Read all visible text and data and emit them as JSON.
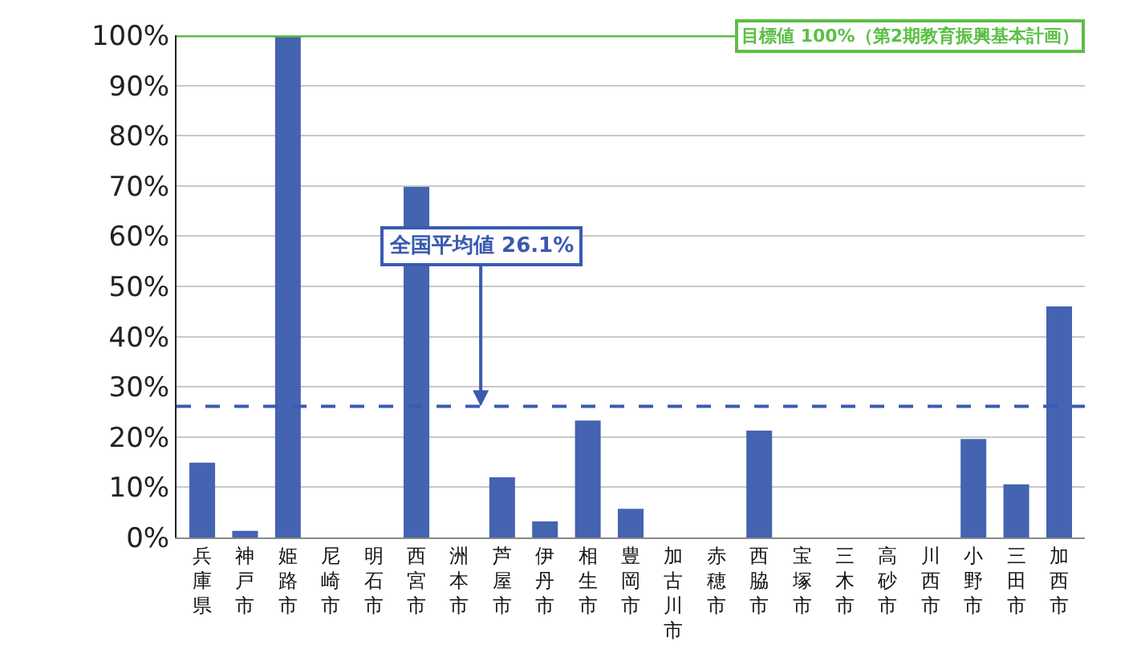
{
  "chart_data": {
    "type": "bar",
    "categories": [
      "兵庫県",
      "神戸市",
      "姫路市",
      "尼崎市",
      "明石市",
      "西宮市",
      "洲本市",
      "芦屋市",
      "伊丹市",
      "相生市",
      "豊岡市",
      "加古川市",
      "赤穂市",
      "西脇市",
      "宝塚市",
      "三木市",
      "高砂市",
      "川西市",
      "小野市",
      "三田市",
      "加西市"
    ],
    "series": [
      {
        "color": "#4463b0",
        "values": [
          14.9,
          1.3,
          100,
          0,
          0,
          69.8,
          0,
          12,
          3.2,
          23.3,
          5.7,
          0,
          0,
          21.3,
          0,
          0,
          0,
          0,
          19.6,
          10.6,
          46
        ]
      }
    ],
    "ylim": [
      0,
      100
    ],
    "yticks": [
      {
        "value": 0,
        "label": "0%"
      },
      {
        "value": 10,
        "label": "10%"
      },
      {
        "value": 20,
        "label": "20%"
      },
      {
        "value": 30,
        "label": "30%"
      },
      {
        "value": 40,
        "label": "40%"
      },
      {
        "value": 50,
        "label": "50%"
      },
      {
        "value": 60,
        "label": "60%"
      },
      {
        "value": 70,
        "label": "70%"
      },
      {
        "value": 80,
        "label": "80%"
      },
      {
        "value": 90,
        "label": "90%"
      },
      {
        "value": 100,
        "label": "100%"
      }
    ],
    "grid": "y",
    "ref_lines": [
      {
        "axis": "y",
        "value": 100,
        "label": "目標値 100%（第2期教育振興基本計画）",
        "color": "#5cbf46",
        "line_style": "solid"
      },
      {
        "axis": "y",
        "value": 26.1,
        "label": "全国平均値 26.1%",
        "color": "#3a5ab0",
        "line_style": "dashed"
      }
    ]
  }
}
